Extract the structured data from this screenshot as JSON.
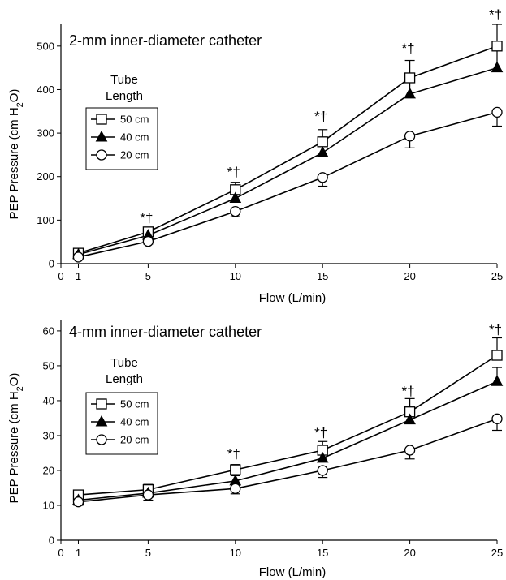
{
  "chart_data": [
    {
      "type": "line",
      "title": "2-mm inner-diameter catheter",
      "xlabel": "Flow (L/min)",
      "ylabel_main": "PEP Pressure (cm H",
      "ylabel_sub": "2",
      "ylabel_end": "O)",
      "xlim": [
        0,
        25
      ],
      "ylim": [
        0,
        550
      ],
      "xticks": [
        0,
        1,
        5,
        10,
        15,
        20,
        25
      ],
      "yticks": [
        0,
        100,
        200,
        300,
        400,
        500
      ],
      "x": [
        1,
        5,
        10,
        15,
        20,
        25
      ],
      "legend": {
        "title_line1": "Tube",
        "title_line2": "Length",
        "placement": "upper-left"
      },
      "series": [
        {
          "name": "50 cm",
          "marker": "square-open",
          "values": [
            24,
            73,
            170,
            280,
            427,
            500
          ],
          "errors": [
            5,
            8,
            17,
            28,
            40,
            50
          ]
        },
        {
          "name": "40 cm",
          "marker": "triangle-filled",
          "values": [
            21,
            65,
            150,
            255,
            390,
            450
          ],
          "errors": [
            5,
            8,
            15,
            22,
            40,
            48
          ]
        },
        {
          "name": "20 cm",
          "marker": "circle-open",
          "values": [
            15,
            51,
            120,
            198,
            293,
            348
          ],
          "errors": [
            3,
            6,
            12,
            20,
            27,
            32
          ]
        }
      ],
      "annotations": [
        {
          "x": 5,
          "y": 95,
          "text": "*†"
        },
        {
          "x": 10,
          "y": 200,
          "text": "*†"
        },
        {
          "x": 15,
          "y": 328,
          "text": "*†"
        },
        {
          "x": 20,
          "y": 485,
          "text": "*†"
        },
        {
          "x": 25,
          "y": 562,
          "text": "*†"
        }
      ]
    },
    {
      "type": "line",
      "title": "4-mm inner-diameter catheter",
      "xlabel": "Flow (L/min)",
      "ylabel_main": "PEP Pressure (cm H",
      "ylabel_sub": "2",
      "ylabel_end": "O)",
      "xlim": [
        0,
        25
      ],
      "ylim": [
        0,
        63
      ],
      "xticks": [
        0,
        1,
        5,
        10,
        15,
        20,
        25
      ],
      "yticks": [
        0,
        10,
        20,
        30,
        40,
        50,
        60
      ],
      "x": [
        1,
        5,
        10,
        15,
        20,
        25
      ],
      "legend": {
        "title_line1": "Tube",
        "title_line2": "Length",
        "placement": "upper-left"
      },
      "series": [
        {
          "name": "50 cm",
          "marker": "square-open",
          "values": [
            13,
            14.5,
            20.2,
            25.8,
            36.8,
            53
          ],
          "errors": [
            1,
            1.5,
            1.5,
            2.5,
            3.8,
            5
          ]
        },
        {
          "name": "40 cm",
          "marker": "triangle-filled",
          "values": [
            11.5,
            13.5,
            17,
            23.5,
            34.5,
            45.5
          ],
          "errors": [
            1,
            1.2,
            1.5,
            2,
            3.5,
            4
          ]
        },
        {
          "name": "20 cm",
          "marker": "circle-open",
          "values": [
            11,
            13,
            14.8,
            20,
            25.8,
            34.8
          ],
          "errors": [
            1,
            1.5,
            1.5,
            2,
            2.5,
            3.3
          ]
        }
      ],
      "annotations": [
        {
          "x": 10,
          "y": 23.5,
          "text": "*†"
        },
        {
          "x": 15,
          "y": 29.5,
          "text": "*†"
        },
        {
          "x": 20,
          "y": 41.5,
          "text": "*†"
        },
        {
          "x": 25,
          "y": 59,
          "text": "*†"
        }
      ]
    }
  ]
}
